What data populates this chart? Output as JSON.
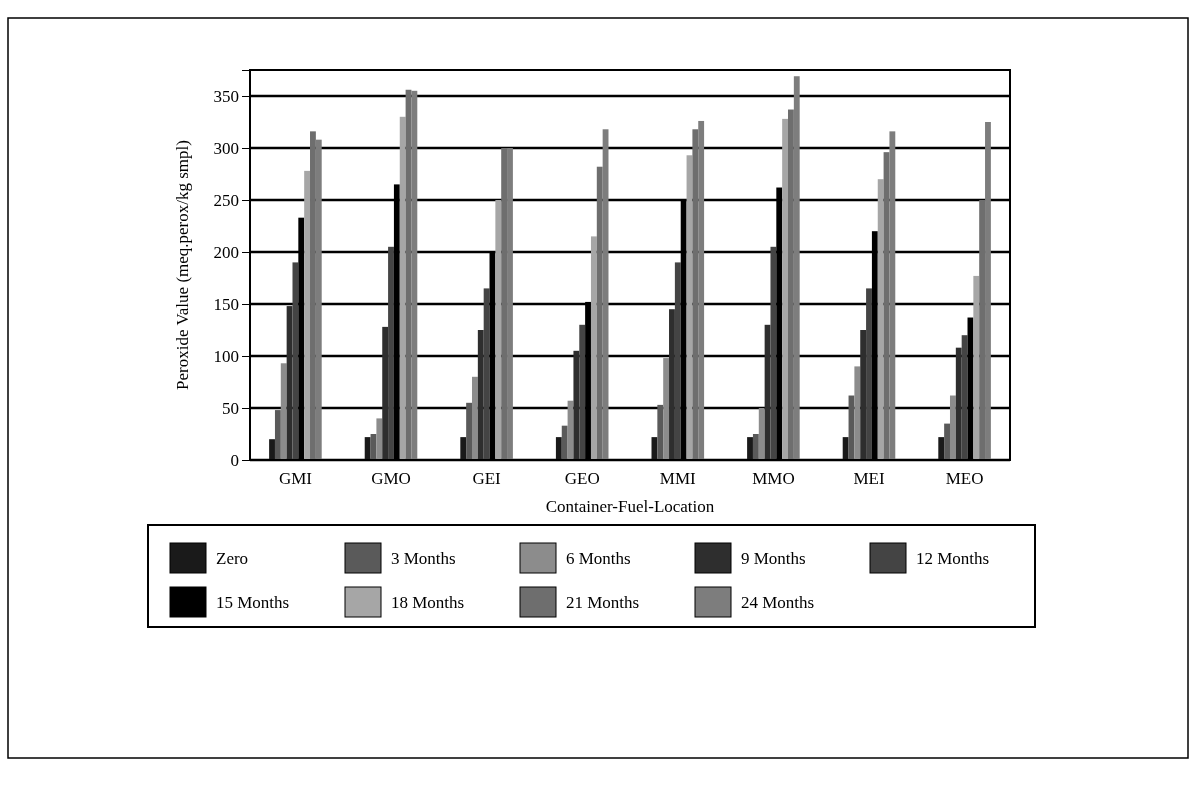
{
  "chart_data": {
    "type": "bar",
    "xlabel": "Container-Fuel-Location",
    "ylabel": "Peroxide Value (meq.perox/kg smpl)",
    "categories": [
      "GMI",
      "GMO",
      "GEI",
      "GEO",
      "MMI",
      "MMO",
      "MEI",
      "MEO"
    ],
    "series": [
      {
        "name": "Zero",
        "color": "#1a1a1a",
        "values": [
          20,
          22,
          22,
          22,
          22,
          22,
          22,
          22
        ]
      },
      {
        "name": "3 Months",
        "color": "#5a5a5a",
        "values": [
          48,
          25,
          55,
          33,
          53,
          25,
          62,
          35
        ]
      },
      {
        "name": "6 Months",
        "color": "#8c8c8c",
        "values": [
          93,
          40,
          80,
          57,
          98,
          50,
          90,
          62
        ]
      },
      {
        "name": "9 Months",
        "color": "#2e2e2e",
        "values": [
          148,
          128,
          125,
          105,
          145,
          130,
          125,
          108
        ]
      },
      {
        "name": "12 Months",
        "color": "#444444",
        "values": [
          190,
          205,
          165,
          130,
          190,
          205,
          165,
          120
        ]
      },
      {
        "name": "15 Months",
        "color": "#000000",
        "values": [
          233,
          265,
          200,
          152,
          250,
          262,
          220,
          137
        ]
      },
      {
        "name": "18 Months",
        "color": "#a6a6a6",
        "values": [
          278,
          330,
          250,
          215,
          293,
          328,
          270,
          177
        ]
      },
      {
        "name": "21 Months",
        "color": "#6e6e6e",
        "values": [
          316,
          356,
          300,
          282,
          318,
          337,
          296,
          250
        ]
      },
      {
        "name": "24 Months",
        "color": "#7d7d7d",
        "values": [
          308,
          355,
          300,
          318,
          326,
          369,
          316,
          325
        ]
      }
    ],
    "ylim": [
      0,
      375
    ],
    "yticks": [
      0,
      50,
      100,
      150,
      200,
      250,
      300,
      350
    ],
    "grid": "y",
    "legend": "bottom"
  }
}
